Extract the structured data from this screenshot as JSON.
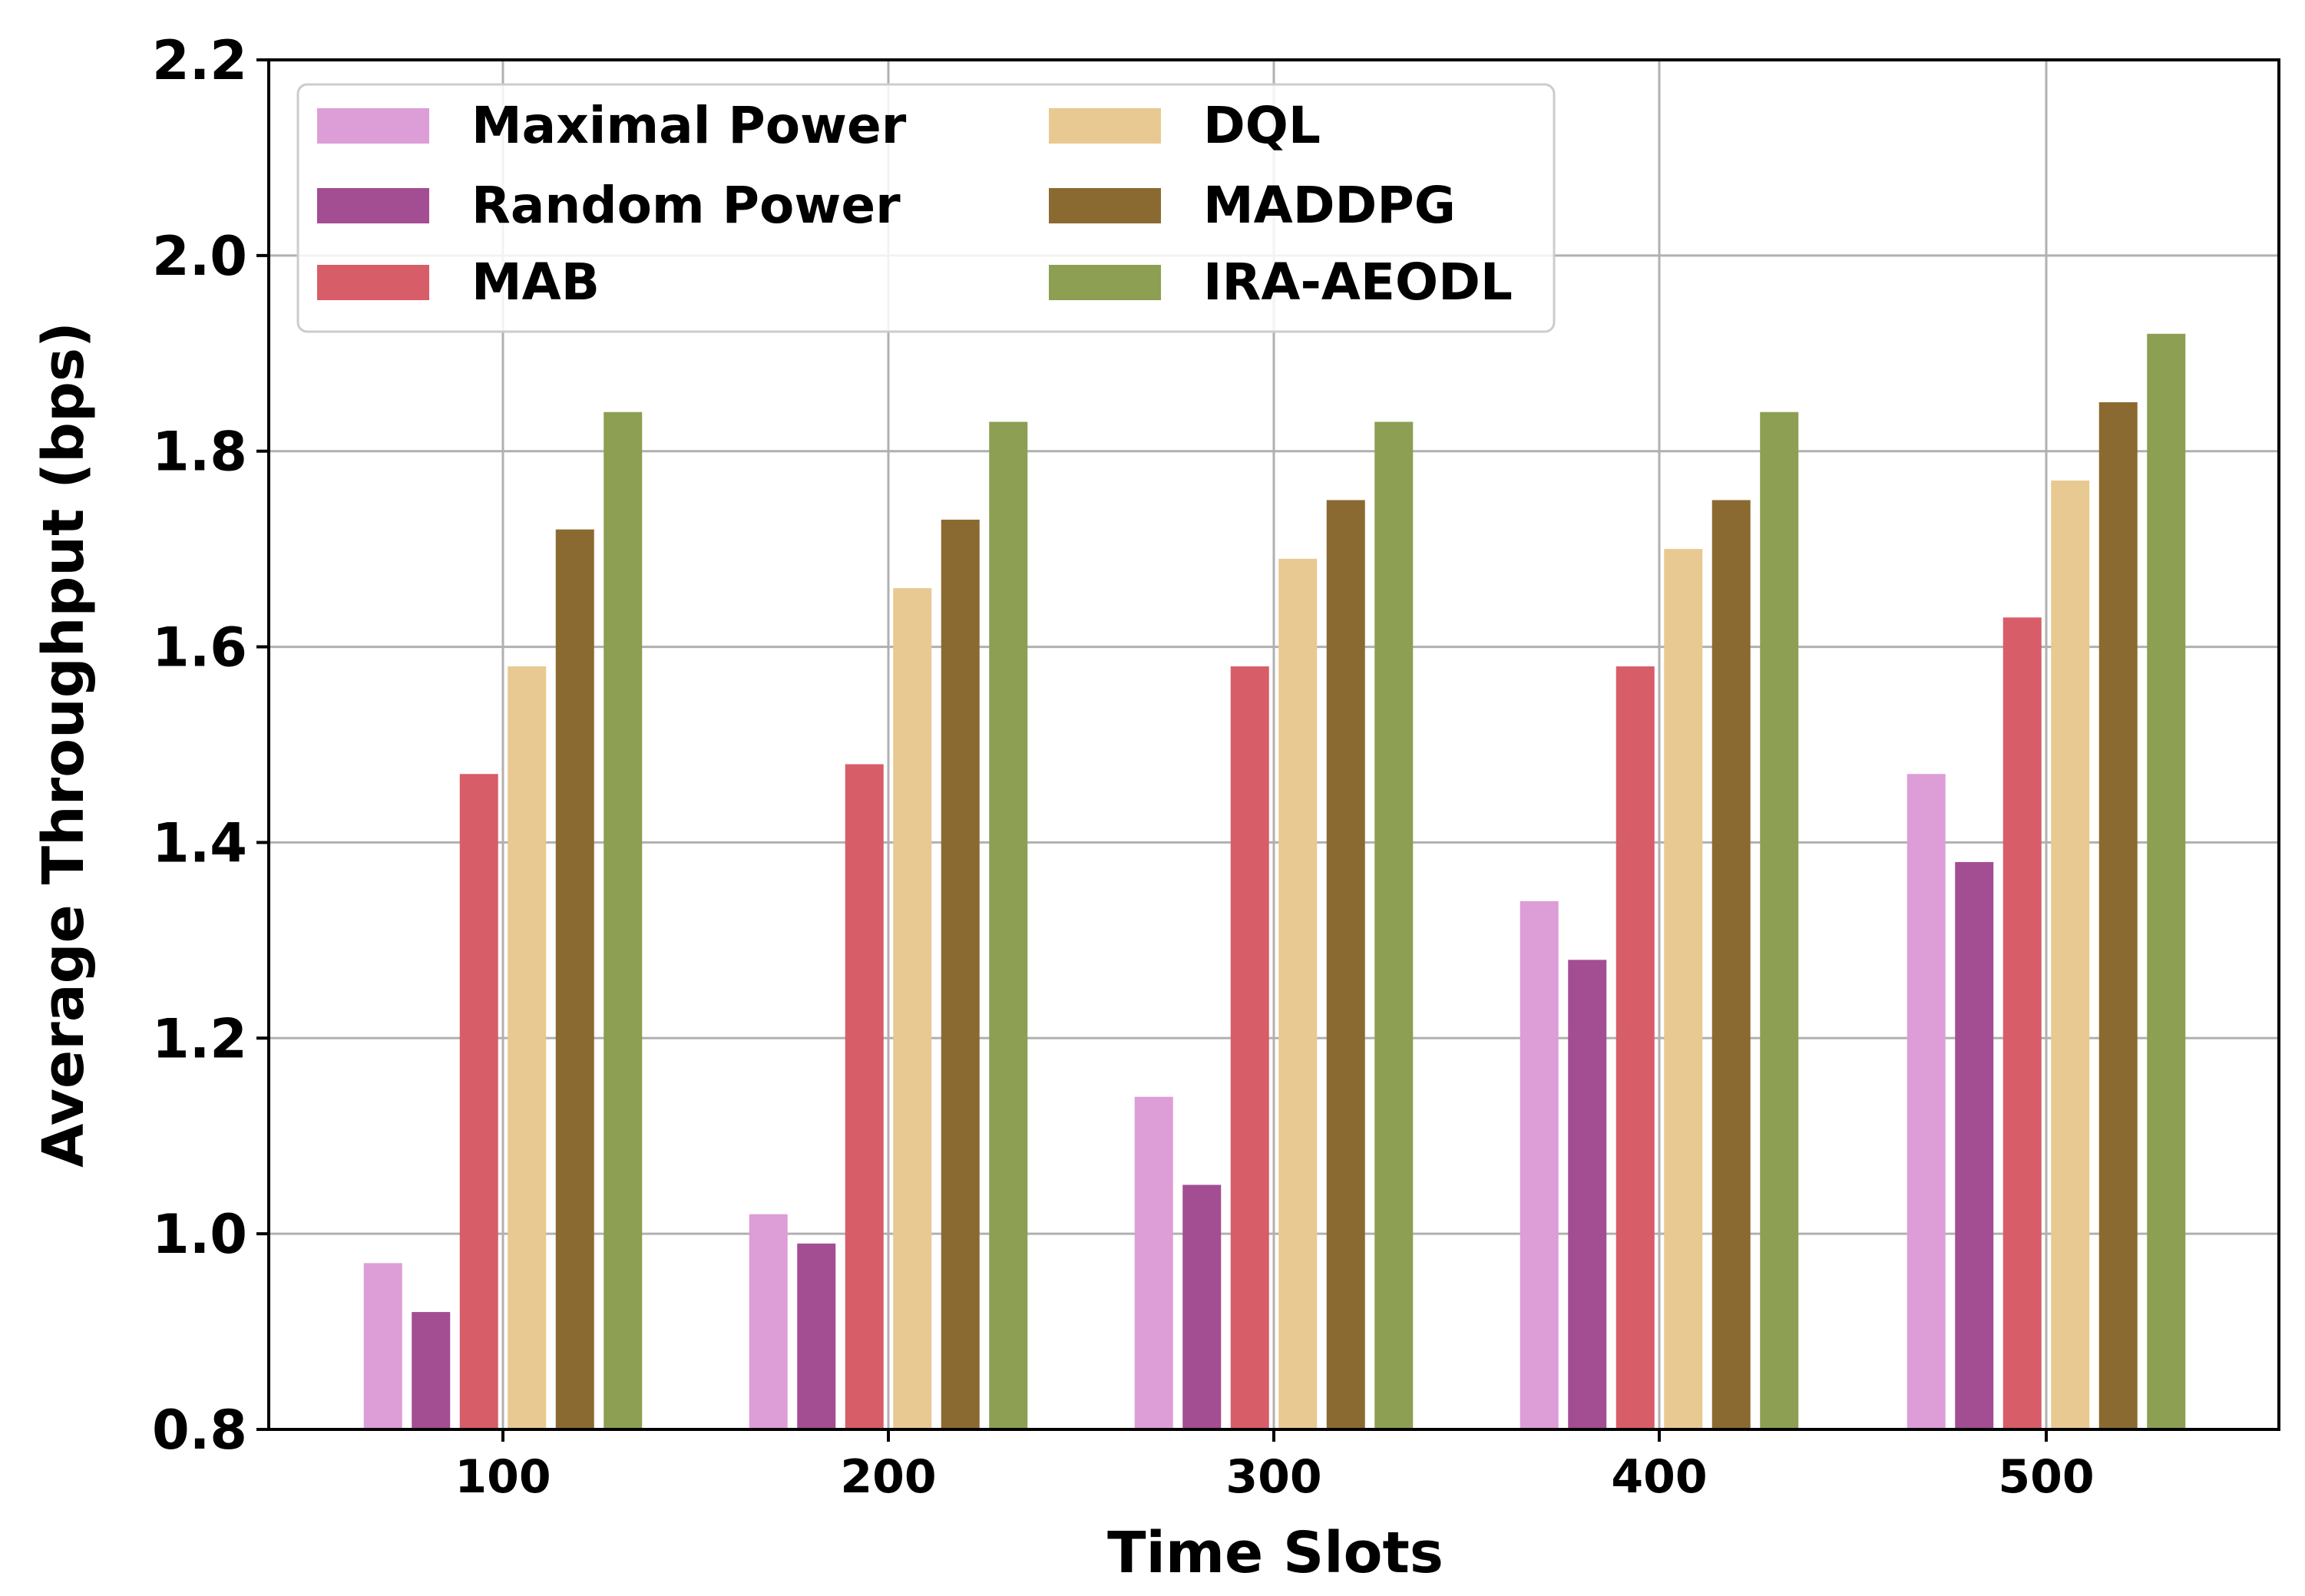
{
  "chart_data": {
    "type": "bar",
    "title": "",
    "xlabel": "Time Slots",
    "ylabel": "Average Throughput (bps)",
    "categories": [
      "100",
      "200",
      "300",
      "400",
      "500"
    ],
    "ylim": [
      0.8,
      2.2
    ],
    "yticks": [
      "0.8",
      "1.0",
      "1.2",
      "1.4",
      "1.6",
      "1.8",
      "2.0",
      "2.2"
    ],
    "grid": true,
    "legend_position": "top-left",
    "series": [
      {
        "name": "Maximal Power",
        "color": "#dd9dd6",
        "values": [
          0.97,
          1.02,
          1.14,
          1.34,
          1.47
        ]
      },
      {
        "name": "Random Power",
        "color": "#a34d93",
        "values": [
          0.92,
          0.99,
          1.05,
          1.28,
          1.38
        ]
      },
      {
        "name": "MAB",
        "color": "#d75d69",
        "values": [
          1.47,
          1.48,
          1.58,
          1.58,
          1.63
        ]
      },
      {
        "name": "DQL",
        "color": "#e8c991",
        "values": [
          1.58,
          1.66,
          1.69,
          1.7,
          1.77
        ]
      },
      {
        "name": "MADDPG",
        "color": "#8b6a31",
        "values": [
          1.72,
          1.73,
          1.75,
          1.75,
          1.85
        ]
      },
      {
        "name": "IRA-AEODL",
        "color": "#8c9f52",
        "values": [
          1.84,
          1.83,
          1.83,
          1.84,
          1.92
        ]
      }
    ]
  }
}
